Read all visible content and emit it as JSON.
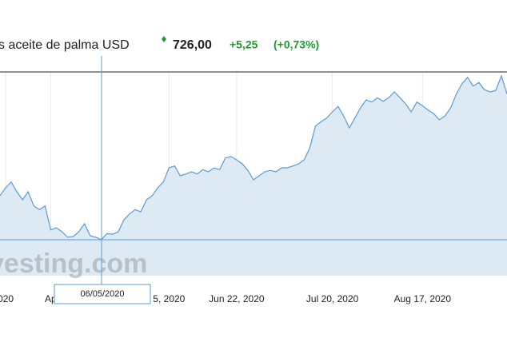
{
  "header": {
    "name": "s aceite de palma USD",
    "price": "726,00",
    "change": "+5,25",
    "change_pct": "(+0,73%)"
  },
  "watermark": "vesting.com",
  "crosshair_label": "06/05/2020",
  "chart_data": {
    "type": "area",
    "color": "#5b9bd5",
    "fill": "#dde9f3",
    "values": [
      583,
      594,
      602,
      588.5,
      577.5,
      588.5,
      569,
      564,
      569,
      536,
      539,
      533.5,
      526,
      527,
      533.5,
      544.5,
      528,
      526,
      522.5,
      531,
      530,
      533.5,
      550,
      558,
      564,
      561,
      577.5,
      583,
      594,
      602,
      621.5,
      624,
      610.5,
      613,
      616,
      613,
      619,
      616,
      621.5,
      619,
      635,
      637,
      632.5,
      627,
      618,
      605,
      610.5,
      616,
      618,
      616,
      621.5,
      621.5,
      624,
      627,
      632.5,
      649,
      679,
      685,
      690,
      698.5,
      706,
      693,
      676.5,
      690,
      704,
      715,
      712,
      718,
      713,
      718,
      726,
      718,
      709.5,
      698.5,
      712,
      707,
      701,
      696,
      687.5,
      693,
      704,
      723,
      737,
      746,
      734,
      739,
      729,
      726,
      728,
      748,
      723
    ],
    "ylim": [
      473,
      753.5
    ],
    "xlim": [
      0,
      90
    ],
    "xticks": [
      {
        "value": 1,
        "label": "020"
      },
      {
        "value": 9,
        "label": "Ap"
      },
      {
        "value": 30,
        "label": "5, 2020"
      },
      {
        "value": 42,
        "label": "Jun 22, 2020"
      },
      {
        "value": 59,
        "label": "Jul 20, 2020"
      },
      {
        "value": 75,
        "label": "Aug 17, 2020"
      }
    ],
    "grid": true
  }
}
